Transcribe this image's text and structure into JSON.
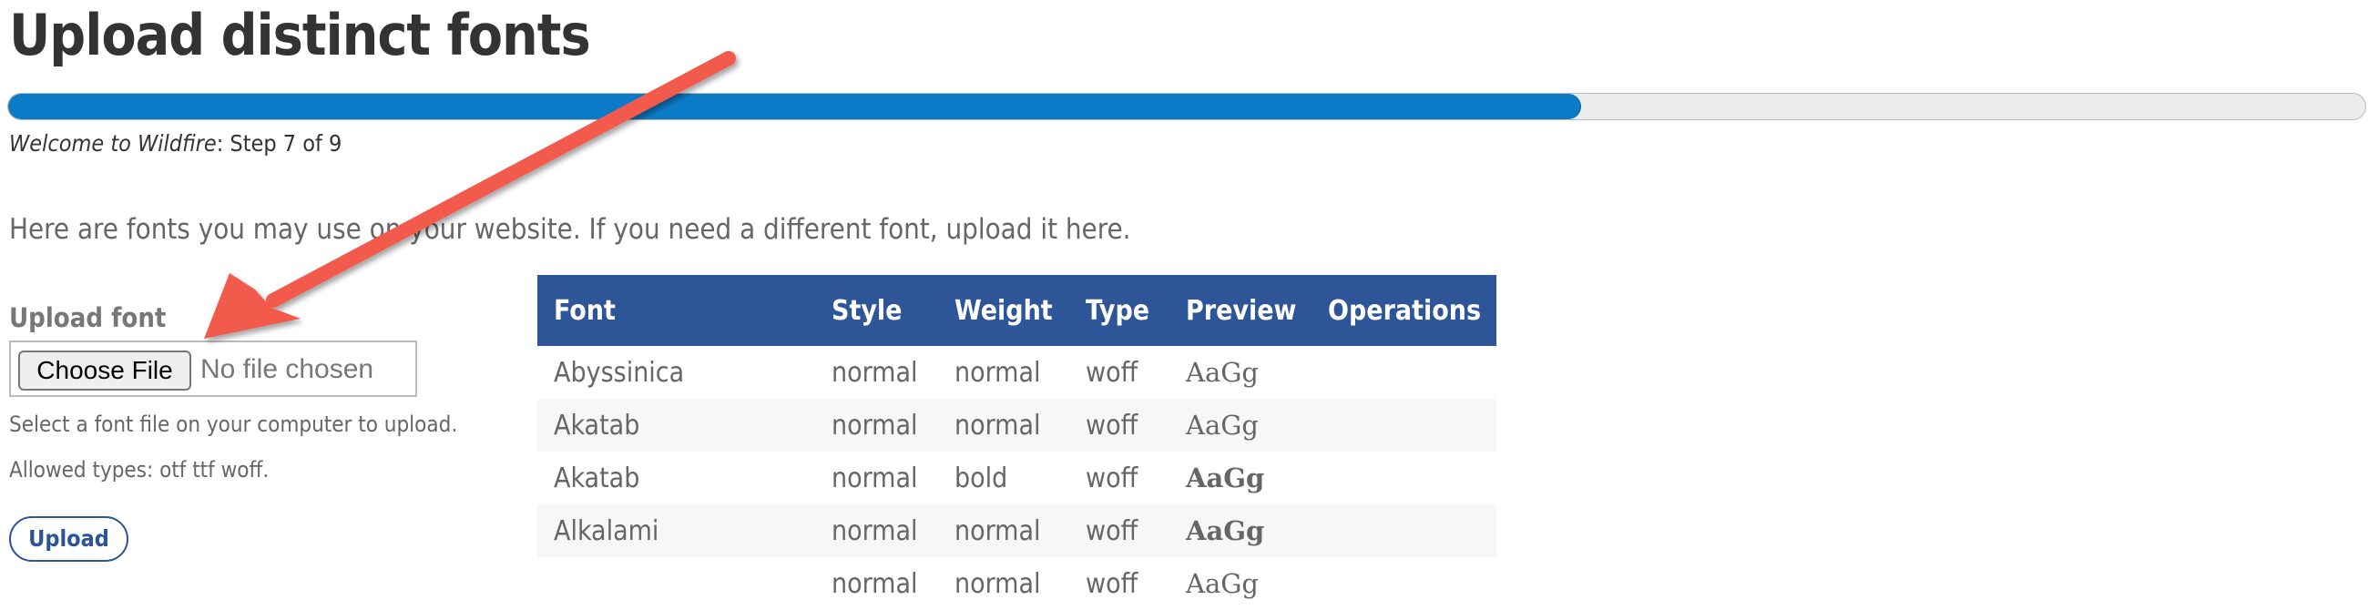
{
  "page": {
    "title": "Upload distinct fonts",
    "progress": {
      "fraction": 0.667,
      "fill_color": "#0c7bc7"
    },
    "step": {
      "site": "Welcome to Wildfire",
      "text": ": Step 7 of 9"
    },
    "intro": "Here are fonts you may use on your website. If you need a different font, upload it here."
  },
  "upload": {
    "label": "Upload font",
    "choose_button": "Choose File",
    "file_status": "No file chosen",
    "help": "Select a font file on your computer to upload.",
    "allowed": "Allowed types: otf ttf woff.",
    "submit": "Upload"
  },
  "table": {
    "headers": [
      "Font",
      "Style",
      "Weight",
      "Type",
      "Preview",
      "Operations"
    ],
    "header_color": "#2d5597",
    "rows": [
      {
        "font": "Abyssinica",
        "style": "normal",
        "weight": "normal",
        "type": "woff",
        "preview": "AaGg"
      },
      {
        "font": "Akatab",
        "style": "normal",
        "weight": "normal",
        "type": "woff",
        "preview": "AaGg"
      },
      {
        "font": "Akatab",
        "style": "normal",
        "weight": "bold",
        "type": "woff",
        "preview": "AaGg"
      },
      {
        "font": "Alkalami",
        "style": "normal",
        "weight": "normal",
        "type": "woff",
        "preview": "AaGg"
      },
      {
        "font": "",
        "style": "normal",
        "weight": "normal",
        "type": "woff",
        "preview": "AaGg"
      }
    ]
  },
  "annotation": {
    "icon": "arrow-annotation-icon",
    "color": "#f25a4b"
  }
}
